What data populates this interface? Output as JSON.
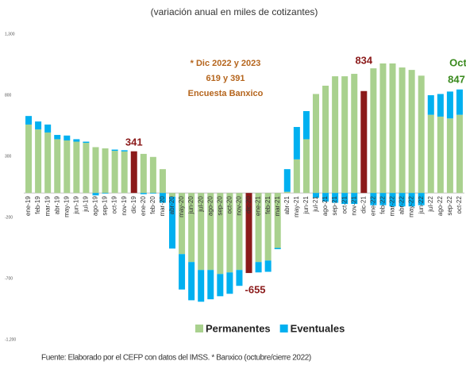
{
  "chart_data": {
    "type": "bar",
    "stacked": true,
    "title": "(variación anual en miles de cotizantes)",
    "note": [
      "* Dic 2022 y 2023",
      "619 y 391",
      "Encuesta Banxico"
    ],
    "source": "Fuente: Elaborado por el CEFP con datos del IMSS. * Banxico (octubre/cierre 2022)",
    "annotations": [
      {
        "text": "341",
        "color": "#8b1a1a"
      },
      {
        "text": "-655",
        "color": "#8b1a1a"
      },
      {
        "text": "834",
        "color": "#8b1a1a"
      },
      {
        "text": "Oct",
        "color": "#3a8a1e"
      },
      {
        "text": "847",
        "color": "#3a8a1e"
      }
    ],
    "categories": [
      "ene-19",
      "feb-19",
      "mar-19",
      "abr-19",
      "may-19",
      "jun-19",
      "jul-19",
      "ago-19",
      "sep-19",
      "oct-19",
      "nov-19",
      "dic-19",
      "ene-20",
      "feb-20",
      "mar-20",
      "abr-20",
      "may-20",
      "jun-20",
      "jul-20",
      "ago-20",
      "sep-20",
      "oct-20",
      "nov-20",
      "dic-20",
      "ene-21",
      "feb-21",
      "mar-21",
      "abr-21",
      "may-21",
      "jun-21",
      "jul-21",
      "ago-21",
      "sep-21",
      "oct-21",
      "nov-21",
      "dic-21",
      "ene-22",
      "feb-22",
      "mar-22",
      "abr-22",
      "may-22",
      "jun-22",
      "jul-22",
      "ago-22",
      "sep-22",
      "oct-22"
    ],
    "series": [
      {
        "name": "Permanentes",
        "color": "#a9d18e",
        "values": [
          560,
          520,
          495,
          440,
          430,
          420,
          410,
          375,
          365,
          345,
          340,
          341,
          320,
          295,
          195,
          -30,
          -500,
          -565,
          -630,
          -630,
          -663,
          -650,
          -630,
          -655,
          -565,
          -553,
          -450,
          10,
          275,
          440,
          810,
          878,
          955,
          955,
          975,
          834,
          1020,
          1060,
          1060,
          1027,
          1007,
          960,
          640,
          625,
          610,
          640
        ],
        "colors": {
          "11": "#8b1a1a",
          "23": "#8b1a1a",
          "35": "#8b1a1a"
        }
      },
      {
        "name": "Eventuales",
        "color": "#00b0f0",
        "values": [
          70,
          65,
          65,
          35,
          40,
          20,
          10,
          -20,
          -5,
          10,
          10,
          null,
          -10,
          -5,
          -80,
          -425,
          -290,
          -313,
          -260,
          -240,
          -182,
          -175,
          -130,
          null,
          -85,
          -92,
          -10,
          185,
          265,
          230,
          -40,
          -70,
          -80,
          -90,
          -90,
          null,
          -100,
          -100,
          -110,
          -110,
          -110,
          -100,
          160,
          185,
          220,
          207
        ]
      }
    ],
    "ylim": [
      -1200,
      1300
    ],
    "yticks": [
      {
        "value": 1300,
        "label": "1,300"
      },
      800,
      300,
      -200,
      -700,
      {
        "value": -1200,
        "label": "-1,200"
      }
    ]
  }
}
